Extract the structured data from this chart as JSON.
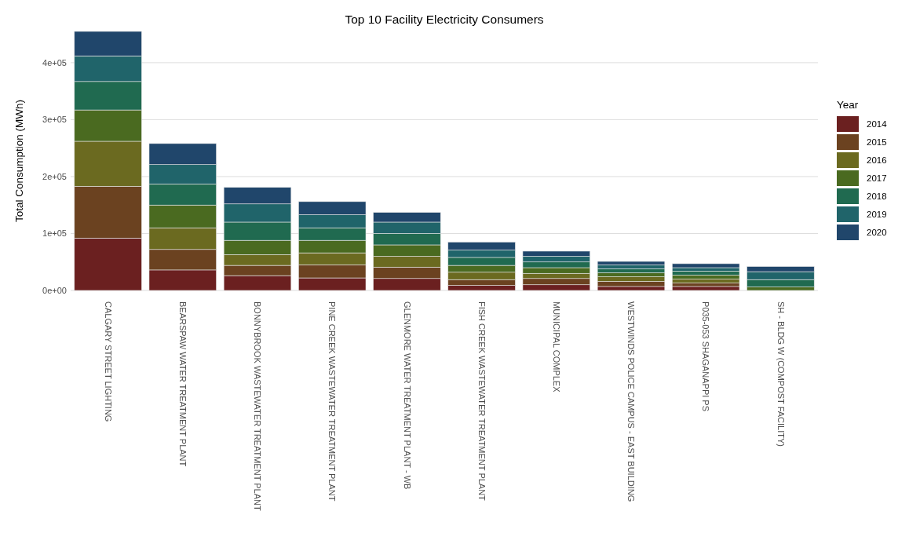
{
  "chart_data": {
    "type": "bar",
    "title": "Top 10 Facility Electricity Consumers",
    "ylabel": "Total Consumption (MWh)",
    "legend_title": "Year",
    "categories": [
      "CALGARY STREET LIGHTING",
      "BEARSPAW WATER TREATMENT PLANT",
      "BONNYBROOK WASTEWATER TREATMENT PLANT",
      "PINE CREEK WASTEWATER TREATMENT PLANT",
      "GLENMORE WATER TREATMENT PLANT - WB",
      "FISH CREEK WASTEWATER TREATMENT PLANT",
      "MUNICIPAL COMPLEX",
      "WESTWINDS POLICE CAMPUS - EAST BUILDING",
      "P035-053 SHAGANAPPI PS",
      "SH - BLDG W (COMPOST FACILITY)"
    ],
    "stacked": true,
    "series": [
      {
        "name": "2014",
        "color": "#6b2020",
        "values": [
          92000,
          36000,
          26000,
          22000,
          21000,
          9000,
          10000,
          7000,
          7000,
          null
        ]
      },
      {
        "name": "2015",
        "color": "#6b4220",
        "values": [
          91000,
          36000,
          18000,
          23000,
          20000,
          10000,
          11000,
          9000,
          6000,
          null
        ]
      },
      {
        "name": "2016",
        "color": "#6b6a20",
        "values": [
          79000,
          38000,
          19000,
          21000,
          19000,
          13000,
          9000,
          8000,
          7000,
          null
        ]
      },
      {
        "name": "2017",
        "color": "#4a6a20",
        "values": [
          55000,
          40000,
          25000,
          22000,
          20000,
          12000,
          10000,
          7000,
          7000,
          6000
        ]
      },
      {
        "name": "2018",
        "color": "#206a50",
        "values": [
          50000,
          37000,
          32000,
          22000,
          20000,
          14000,
          10000,
          7000,
          7000,
          13000
        ]
      },
      {
        "name": "2019",
        "color": "#20646a",
        "values": [
          45000,
          34000,
          32000,
          23000,
          20000,
          13000,
          10000,
          7000,
          6000,
          14000
        ]
      },
      {
        "name": "2020",
        "color": "#20466b",
        "values": [
          43000,
          37000,
          29000,
          23000,
          17000,
          14000,
          9000,
          6000,
          7000,
          9000
        ]
      }
    ],
    "ylim": [
      0,
      455000
    ],
    "yticks": [
      {
        "value": 0,
        "label": "0e+00"
      },
      {
        "value": 100000,
        "label": "1e+05"
      },
      {
        "value": 200000,
        "label": "2e+05"
      },
      {
        "value": 300000,
        "label": "3e+05"
      },
      {
        "value": 400000,
        "label": "4e+05"
      }
    ],
    "grid": "y",
    "legend": "right"
  }
}
